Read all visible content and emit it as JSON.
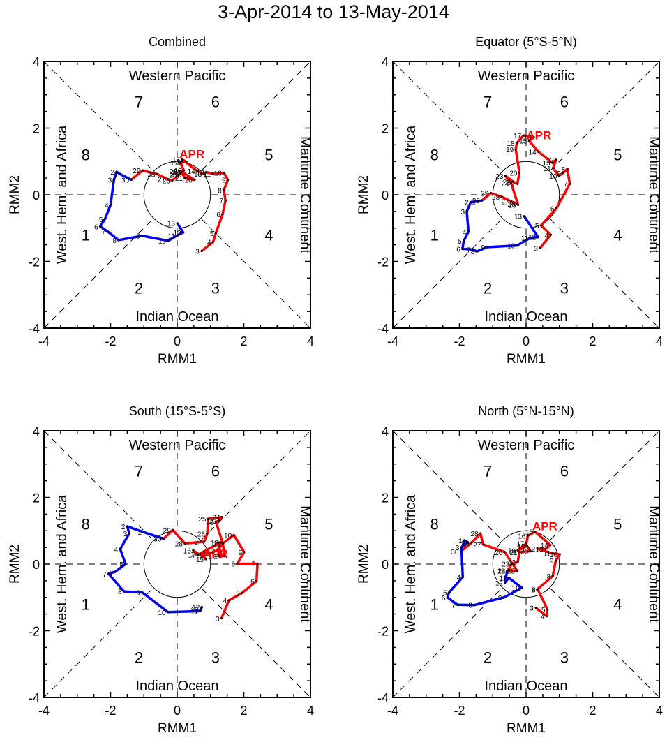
{
  "title": "3-Apr-2014 to 13-May-2014",
  "colors": {
    "april": "#ff0000",
    "may": "#0000ff",
    "axes": "#000000"
  },
  "month_marker_label": "APR",
  "chart_data": [
    {
      "type": "line",
      "title": "Combined",
      "xlabel": "RMM1",
      "ylabel": "RMM2",
      "xlim": [
        -4,
        4
      ],
      "ylim": [
        -4,
        4
      ],
      "xticks": [
        "-4",
        "-2",
        "0",
        "2",
        "4"
      ],
      "yticks": [
        "-4",
        "-2",
        "0",
        "2",
        "4"
      ],
      "region_labels": {
        "top": "Western Pacific",
        "bottom": "Indian Ocean",
        "left": "West. Hem. and Africa",
        "right": "Maritime Continent"
      },
      "phase_labels": [
        "1",
        "2",
        "3",
        "4",
        "5",
        "6",
        "7",
        "8"
      ],
      "series": [
        {
          "name": "April",
          "color": "#ff0000",
          "days": [
            3,
            4,
            5,
            6,
            7,
            8,
            9,
            10,
            11,
            12,
            13,
            14,
            15,
            16,
            17,
            18,
            19,
            20,
            21,
            22,
            23,
            24,
            25,
            26,
            27,
            28,
            29,
            30
          ],
          "x": [
            0.73,
            1.08,
            1.16,
            1.36,
            1.45,
            1.4,
            1.52,
            1.4,
            1.07,
            0.87,
            0.8,
            0.6,
            0.15,
            0.27,
            0.09,
            0.2,
            0.13,
            0.52,
            0.23,
            0.13,
            0.06,
            0.1,
            0.05,
            -0.15,
            -0.29,
            -0.6,
            -1.04,
            -1.38
          ],
          "y": [
            -1.69,
            -1.41,
            -1.15,
            -0.59,
            -0.17,
            0.14,
            0.45,
            0.66,
            0.63,
            0.68,
            0.63,
            0.71,
            1.06,
            0.99,
            0.96,
            0.73,
            0.69,
            0.45,
            0.5,
            0.68,
            0.71,
            0.64,
            0.6,
            0.43,
            0.47,
            0.62,
            0.73,
            0.45
          ]
        },
        {
          "name": "May",
          "color": "#0000ff",
          "days": [
            1,
            2,
            3,
            4,
            5,
            6,
            7,
            8,
            9,
            10,
            11,
            12,
            13
          ],
          "x": [
            -1.73,
            -1.82,
            -1.9,
            -2.0,
            -2.17,
            -2.31,
            -2.09,
            -1.76,
            -1.05,
            -0.27,
            0.0,
            0.18,
            0.0
          ],
          "y": [
            0.63,
            0.69,
            0.45,
            -0.3,
            -0.73,
            -0.95,
            -1.1,
            -1.36,
            -1.23,
            -1.38,
            -1.22,
            -1.13,
            -0.85
          ]
        }
      ]
    },
    {
      "type": "line",
      "title": "Equator (5°S-5°N)",
      "xlabel": "RMM1",
      "ylabel": "RMM2",
      "xlim": [
        -4,
        4
      ],
      "ylim": [
        -4,
        4
      ],
      "xticks": [
        "-4",
        "-2",
        "0",
        "2",
        "4"
      ],
      "yticks": [
        "-4",
        "-2",
        "0",
        "2",
        "4"
      ],
      "region_labels": {
        "top": "Western Pacific",
        "bottom": "Indian Ocean",
        "left": "West. Hem. and Africa",
        "right": "Maritime Continent"
      },
      "phase_labels": [
        "1",
        "2",
        "3",
        "4",
        "5",
        "6",
        "7",
        "8"
      ],
      "series": [
        {
          "name": "April",
          "color": "#ff0000",
          "days": [
            3,
            4,
            5,
            6,
            7,
            8,
            9,
            10,
            11,
            12,
            13,
            14,
            15,
            16,
            17,
            18,
            19,
            20,
            21,
            22,
            23,
            24,
            25,
            26,
            27,
            28,
            29,
            30
          ],
          "x": [
            0.42,
            0.74,
            0.45,
            0.91,
            1.31,
            1.24,
            1.1,
            0.99,
            0.81,
            0.9,
            0.79,
            0.37,
            0.09,
            0.23,
            -0.08,
            -0.28,
            -0.31,
            -0.2,
            -0.26,
            -0.4,
            -0.62,
            -0.45,
            -0.24,
            -0.26,
            -0.45,
            -0.73,
            -1.06,
            -1.32
          ],
          "y": [
            -1.6,
            -1.2,
            -0.92,
            -0.41,
            0.33,
            0.77,
            0.65,
            0.57,
            0.8,
            1.05,
            0.96,
            1.29,
            1.62,
            1.73,
            1.78,
            1.55,
            1.36,
            0.66,
            0.33,
            0.4,
            0.57,
            0.35,
            -0.3,
            -0.27,
            -0.2,
            -0.06,
            0.05,
            -0.17
          ]
        },
        {
          "name": "May",
          "color": "#0000ff",
          "days": [
            1,
            2,
            3,
            4,
            5,
            6,
            7,
            8,
            9,
            10,
            11,
            12,
            13
          ],
          "x": [
            -1.45,
            -1.66,
            -1.78,
            -1.73,
            -1.87,
            -1.91,
            -1.6,
            -1.48,
            -1.17,
            -0.27,
            0.13,
            0.36,
            -0.06
          ],
          "y": [
            -0.2,
            -0.22,
            -0.5,
            -1.11,
            -1.38,
            -1.62,
            -1.64,
            -1.7,
            -1.57,
            -1.52,
            -1.29,
            -1.27,
            -0.64
          ]
        }
      ]
    },
    {
      "type": "line",
      "title": "South (15°S-5°S)",
      "xlabel": "RMM1",
      "ylabel": "RMM2",
      "xlim": [
        -4,
        4
      ],
      "ylim": [
        -4,
        4
      ],
      "xticks": [
        "-4",
        "-2",
        "0",
        "2",
        "4"
      ],
      "yticks": [
        "-4",
        "-2",
        "0",
        "2",
        "4"
      ],
      "region_labels": {
        "top": "Western Pacific",
        "bottom": "Indian Ocean",
        "left": "West. Hem. and Africa",
        "right": "Maritime Continent"
      },
      "phase_labels": [
        "1",
        "2",
        "3",
        "4",
        "5",
        "6",
        "7",
        "8"
      ],
      "series": [
        {
          "name": "April",
          "color": "#ff0000",
          "days": [
            3,
            4,
            5,
            6,
            7,
            8,
            9,
            10,
            11,
            12,
            13,
            14,
            15,
            16,
            17,
            18,
            19,
            20,
            21,
            22,
            23,
            24,
            25,
            26,
            27,
            28,
            29,
            30
          ],
          "x": [
            1.33,
            1.55,
            1.94,
            2.38,
            2.41,
            1.8,
            2.01,
            1.7,
            1.37,
            1.19,
            1.05,
            0.7,
            0.86,
            0.48,
            0.62,
            1.3,
            1.24,
            1.42,
            1.37,
            1.16,
            1.25,
            1.35,
            0.93,
            0.9,
            0.81,
            0.23,
            -0.13,
            -0.41
          ],
          "y": [
            -1.63,
            -1.09,
            -0.87,
            -0.51,
            0.01,
            0.01,
            0.36,
            0.87,
            0.62,
            0.41,
            0.35,
            0.3,
            0.15,
            0.41,
            0.28,
            0.65,
            0.24,
            0.24,
            0.62,
            1.27,
            1.3,
            1.41,
            1.36,
            0.91,
            0.67,
            0.62,
            1.02,
            0.76
          ]
        },
        {
          "name": "May",
          "color": "#0000ff",
          "days": [
            1,
            2,
            3,
            4,
            5,
            6,
            7,
            8,
            9,
            10,
            11,
            12,
            13
          ],
          "x": [
            -1.01,
            -1.5,
            -1.44,
            -1.71,
            -1.55,
            -1.86,
            -2.06,
            -1.6,
            -1.05,
            -0.28,
            0.69,
            0.74,
            0.7
          ],
          "y": [
            0.96,
            1.13,
            0.92,
            0.45,
            0.0,
            -0.23,
            -0.29,
            -0.82,
            -0.85,
            -1.44,
            -1.41,
            -1.29,
            -1.36
          ]
        }
      ]
    },
    {
      "type": "line",
      "title": "North (5°N-15°N)",
      "xlabel": "RMM1",
      "ylabel": "RMM2",
      "xlim": [
        -4,
        4
      ],
      "ylim": [
        -4,
        4
      ],
      "xticks": [
        "-4",
        "-2",
        "0",
        "2",
        "4"
      ],
      "yticks": [
        "-4",
        "-2",
        "0",
        "2",
        "4"
      ],
      "region_labels": {
        "top": "Western Pacific",
        "bottom": "Indian Ocean",
        "left": "West. Hem. and Africa",
        "right": "Maritime Continent"
      },
      "phase_labels": [
        "1",
        "2",
        "3",
        "4",
        "5",
        "6",
        "7",
        "8"
      ],
      "series": [
        {
          "name": "April",
          "color": "#ff0000",
          "days": [
            3,
            4,
            5,
            6,
            7,
            8,
            9,
            10,
            11,
            12,
            13,
            14,
            15,
            16,
            17,
            18,
            19,
            20,
            21,
            22,
            23,
            24,
            25,
            26,
            27,
            28,
            29,
            30
          ],
          "x": [
            0.29,
            0.62,
            0.64,
            0.35,
            0.33,
            0.8,
            0.89,
            1.01,
            0.8,
            0.34,
            0.58,
            0.73,
            0.27,
            0.05,
            0.01,
            -0.25,
            0.03,
            0.13,
            -0.2,
            -0.25,
            -0.43,
            -0.55,
            -0.27,
            -0.64,
            -1.29,
            -1.37,
            -1.64,
            -1.96
          ],
          "y": [
            -1.31,
            -1.56,
            -1.36,
            -0.76,
            -0.76,
            -0.36,
            0.1,
            0.29,
            0.32,
            0.46,
            0.45,
            0.57,
            0.97,
            0.85,
            0.62,
            0.41,
            0.54,
            0.39,
            0.36,
            0.06,
            0.01,
            -0.2,
            -0.2,
            0.36,
            0.59,
            0.92,
            0.64,
            0.38
          ]
        },
        {
          "name": "May",
          "color": "#0000ff",
          "days": [
            1,
            2,
            3,
            4,
            5,
            6,
            7,
            8,
            9,
            10,
            11,
            12,
            13
          ],
          "x": [
            -1.85,
            -1.75,
            -1.94,
            -1.9,
            -2.31,
            -2.36,
            -2.06,
            -1.55,
            -0.66,
            -0.13,
            -0.52,
            -0.63,
            -0.57
          ],
          "y": [
            0.71,
            0.65,
            0.5,
            -0.39,
            -0.85,
            -1.0,
            -1.22,
            -1.23,
            -1.0,
            -0.71,
            -0.41,
            -0.55,
            -0.2
          ]
        }
      ]
    }
  ]
}
